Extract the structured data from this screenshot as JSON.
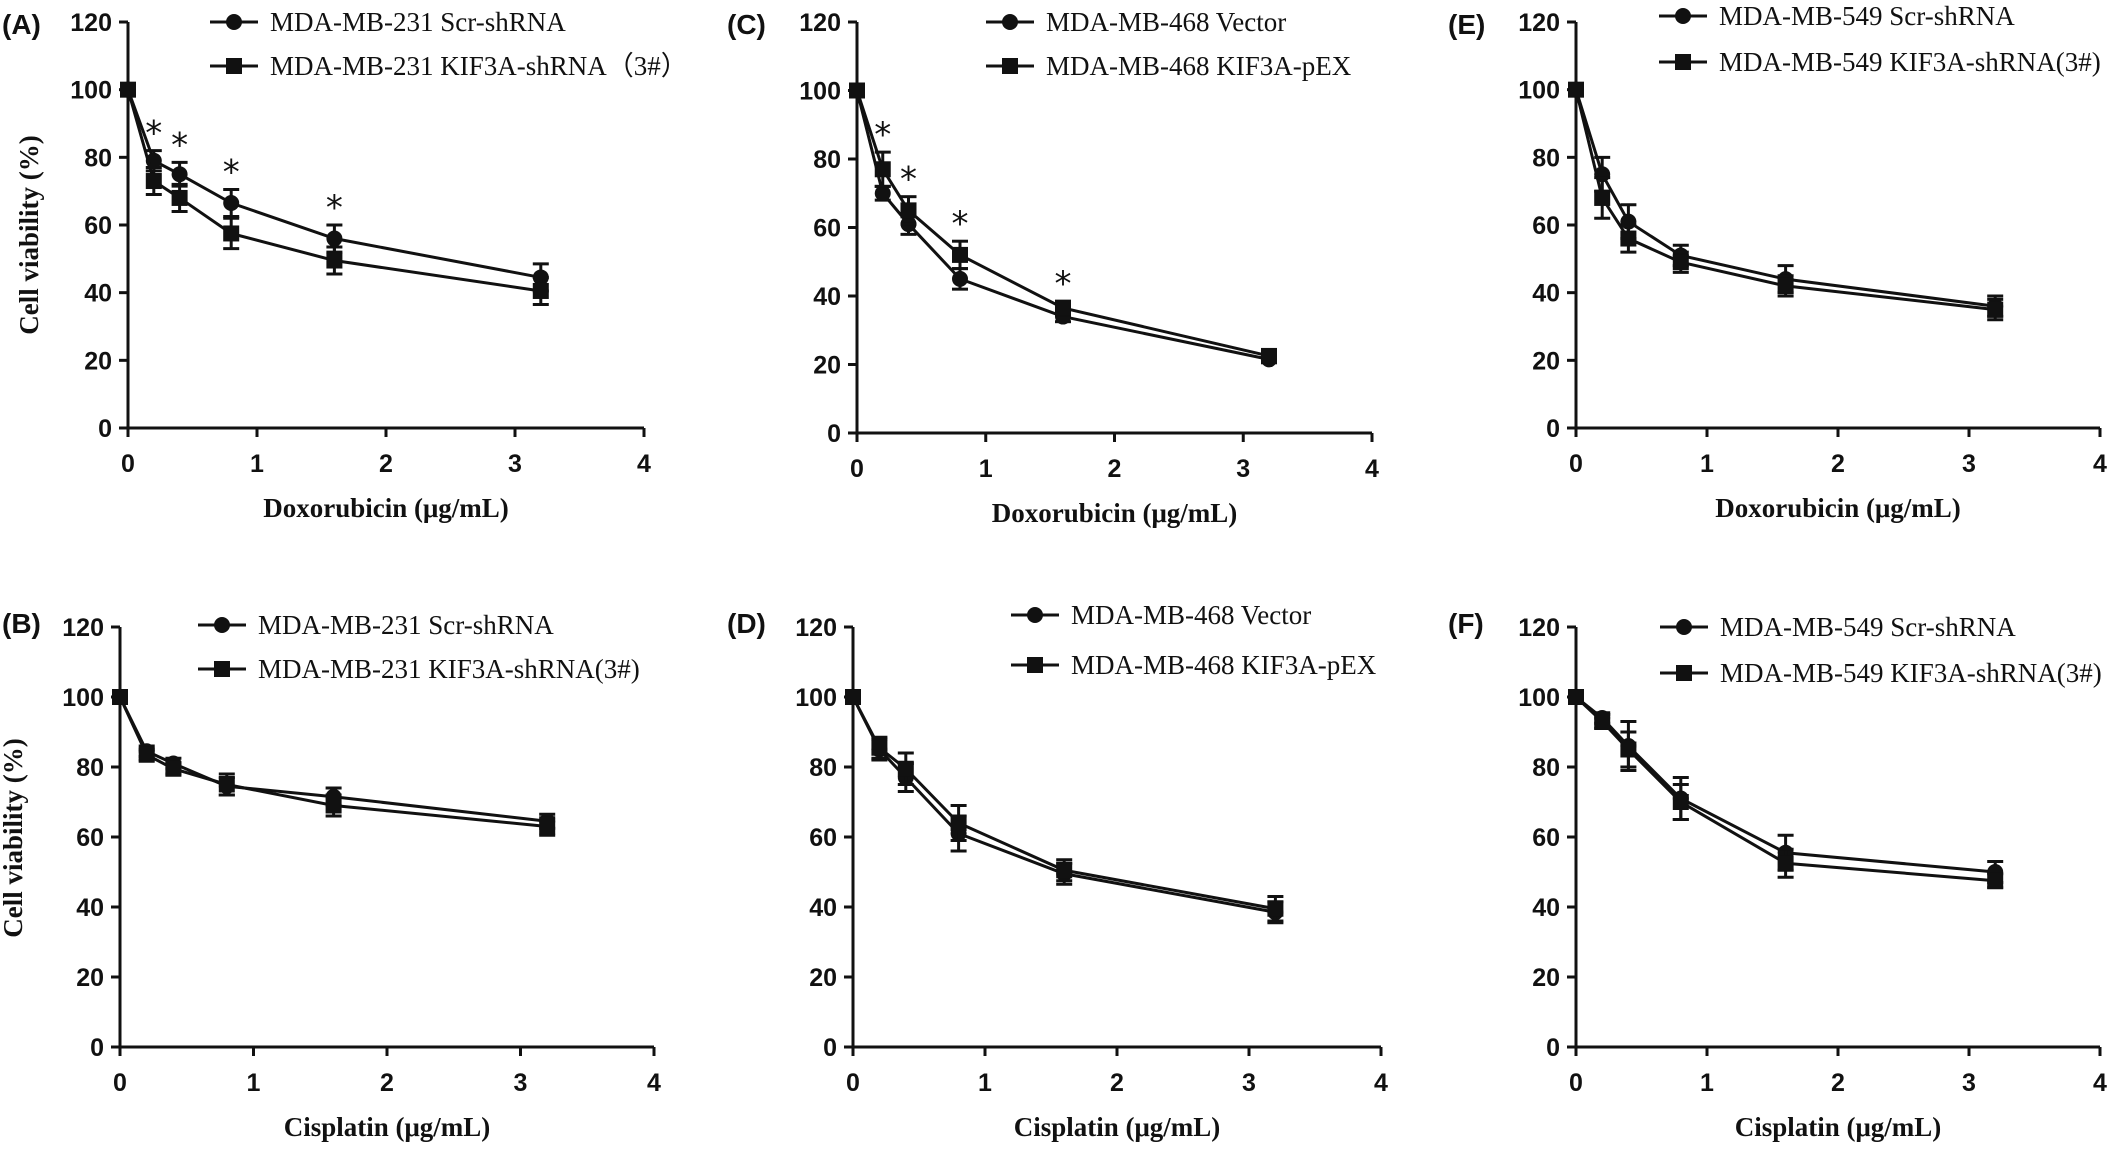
{
  "chart_data": [
    {
      "panel": "(A)",
      "type": "line",
      "xlabel": "Doxorubicin (μg/mL)",
      "ylabel": "Cell viability (%)",
      "xlim": [
        0,
        4
      ],
      "ylim": [
        0,
        120
      ],
      "xticks": [
        "0",
        "1",
        "2",
        "3",
        "4"
      ],
      "yticks": [
        "0",
        "20",
        "40",
        "60",
        "80",
        "100",
        "120"
      ],
      "legend": "top",
      "x": [
        0,
        0.2,
        0.4,
        0.8,
        1.6,
        3.2
      ],
      "series": [
        {
          "name": "MDA-MB-231 Scr-shRNA",
          "marker": "circle",
          "values": [
            100,
            79,
            75,
            66.5,
            56,
            44.5
          ],
          "errors": [
            0,
            3,
            3.5,
            4,
            4,
            4
          ]
        },
        {
          "name": "MDA-MB-231 KIF3A-shRNA（3#）",
          "marker": "square",
          "values": [
            100,
            73,
            68,
            57.5,
            49.5,
            40.5
          ],
          "errors": [
            0,
            4,
            4,
            4.5,
            4,
            4
          ]
        }
      ],
      "significance_at_x": [
        0.2,
        0.4,
        0.8,
        1.6
      ],
      "significance_symbol": "*"
    },
    {
      "panel": "(B)",
      "type": "line",
      "xlabel": "Cisplatin (μg/mL)",
      "ylabel": "Cell viability (%)",
      "xlim": [
        0,
        4
      ],
      "ylim": [
        0,
        120
      ],
      "xticks": [
        "0",
        "1",
        "2",
        "3",
        "4"
      ],
      "yticks": [
        "0",
        "20",
        "40",
        "60",
        "80",
        "100",
        "120"
      ],
      "legend": "top",
      "x": [
        0,
        0.2,
        0.4,
        0.8,
        1.6,
        3.2
      ],
      "series": [
        {
          "name": "MDA-MB-231 Scr-shRNA",
          "marker": "circle",
          "values": [
            100,
            84.5,
            81,
            74.5,
            71.5,
            64.5
          ],
          "errors": [
            0,
            1.5,
            1.5,
            2.5,
            2.5,
            2
          ]
        },
        {
          "name": "MDA-MB-231 KIF3A-shRNA(3#)",
          "marker": "square",
          "values": [
            100,
            83.5,
            79.5,
            75,
            69,
            63
          ],
          "errors": [
            0,
            1.5,
            1.5,
            3,
            3,
            2.5
          ]
        }
      ],
      "significance_at_x": [],
      "significance_symbol": "*"
    },
    {
      "panel": "(C)",
      "type": "line",
      "xlabel": "Doxorubicin (μg/mL)",
      "ylabel": "",
      "xlim": [
        0,
        4
      ],
      "ylim": [
        0,
        120
      ],
      "xticks": [
        "0",
        "1",
        "2",
        "3",
        "4"
      ],
      "yticks": [
        "0",
        "20",
        "40",
        "60",
        "80",
        "100",
        "120"
      ],
      "legend": "top",
      "x": [
        0,
        0.2,
        0.4,
        0.8,
        1.6,
        3.2
      ],
      "series": [
        {
          "name": "MDA-MB-468 Vector",
          "marker": "circle",
          "values": [
            100,
            70,
            61,
            45,
            34,
            21.5
          ],
          "errors": [
            0,
            2,
            3,
            3,
            1.5,
            1
          ]
        },
        {
          "name": "MDA-MB-468 KIF3A-pEX",
          "marker": "square",
          "values": [
            100,
            77,
            65,
            52,
            36.5,
            22.5
          ],
          "errors": [
            0,
            5,
            4,
            4,
            2,
            1.5
          ]
        }
      ],
      "significance_at_x": [
        0.2,
        0.4,
        0.8,
        1.6
      ],
      "significance_symbol": "*"
    },
    {
      "panel": "(D)",
      "type": "line",
      "xlabel": "Cisplatin (μg/mL)",
      "ylabel": "",
      "xlim": [
        0,
        4
      ],
      "ylim": [
        0,
        120
      ],
      "xticks": [
        "0",
        "1",
        "2",
        "3",
        "4"
      ],
      "yticks": [
        "0",
        "20",
        "40",
        "60",
        "80",
        "100",
        "120"
      ],
      "legend": "top",
      "x": [
        0,
        0.2,
        0.4,
        0.8,
        1.6,
        3.2
      ],
      "series": [
        {
          "name": "MDA-MB-468 Vector",
          "marker": "circle",
          "values": [
            100,
            85,
            77,
            61,
            49.5,
            38.5
          ],
          "errors": [
            0,
            3,
            4,
            5,
            3,
            3
          ]
        },
        {
          "name": "MDA-MB-468 KIF3A-pEX",
          "marker": "square",
          "values": [
            100,
            85.5,
            79.5,
            64,
            50.5,
            39.5
          ],
          "errors": [
            0,
            3,
            4.5,
            5,
            3,
            3.5
          ]
        }
      ],
      "significance_at_x": [],
      "significance_symbol": "*"
    },
    {
      "panel": "(E)",
      "type": "line",
      "xlabel": "Doxorubicin (μg/mL)",
      "ylabel": "",
      "xlim": [
        0,
        4
      ],
      "ylim": [
        0,
        120
      ],
      "xticks": [
        "0",
        "1",
        "2",
        "3",
        "4"
      ],
      "yticks": [
        "0",
        "20",
        "40",
        "60",
        "80",
        "100",
        "120"
      ],
      "legend": "top",
      "x": [
        0,
        0.2,
        0.4,
        0.8,
        1.6,
        3.2
      ],
      "series": [
        {
          "name": "MDA-MB-549 Scr-shRNA",
          "marker": "circle",
          "values": [
            100,
            75,
            61,
            51,
            44,
            36
          ],
          "errors": [
            0,
            5,
            5,
            3,
            4,
            3
          ]
        },
        {
          "name": "MDA-MB-549 KIF3A-shRNA(3#)",
          "marker": "square",
          "values": [
            100,
            68,
            56,
            49,
            42,
            35
          ],
          "errors": [
            0,
            6,
            4,
            3,
            3,
            3
          ]
        }
      ],
      "significance_at_x": [],
      "significance_symbol": "*"
    },
    {
      "panel": "(F)",
      "type": "line",
      "xlabel": "Cisplatin (μg/mL)",
      "ylabel": "",
      "xlim": [
        0,
        4
      ],
      "ylim": [
        0,
        120
      ],
      "xticks": [
        "0",
        "1",
        "2",
        "3",
        "4"
      ],
      "yticks": [
        "0",
        "20",
        "40",
        "60",
        "80",
        "100",
        "120"
      ],
      "legend": "top",
      "x": [
        0,
        0.2,
        0.4,
        0.8,
        1.6,
        3.2
      ],
      "series": [
        {
          "name": "MDA-MB-549 Scr-shRNA",
          "marker": "circle",
          "values": [
            100,
            94,
            86,
            71,
            55.5,
            50
          ],
          "errors": [
            0,
            1.5,
            7,
            6,
            5,
            3
          ]
        },
        {
          "name": "MDA-MB-549 KIF3A-shRNA(3#)",
          "marker": "square",
          "values": [
            100,
            93,
            85,
            70,
            52.5,
            47.5
          ],
          "errors": [
            0,
            2,
            5,
            5,
            4,
            2
          ]
        }
      ],
      "significance_at_x": [],
      "significance_symbol": "*"
    }
  ]
}
